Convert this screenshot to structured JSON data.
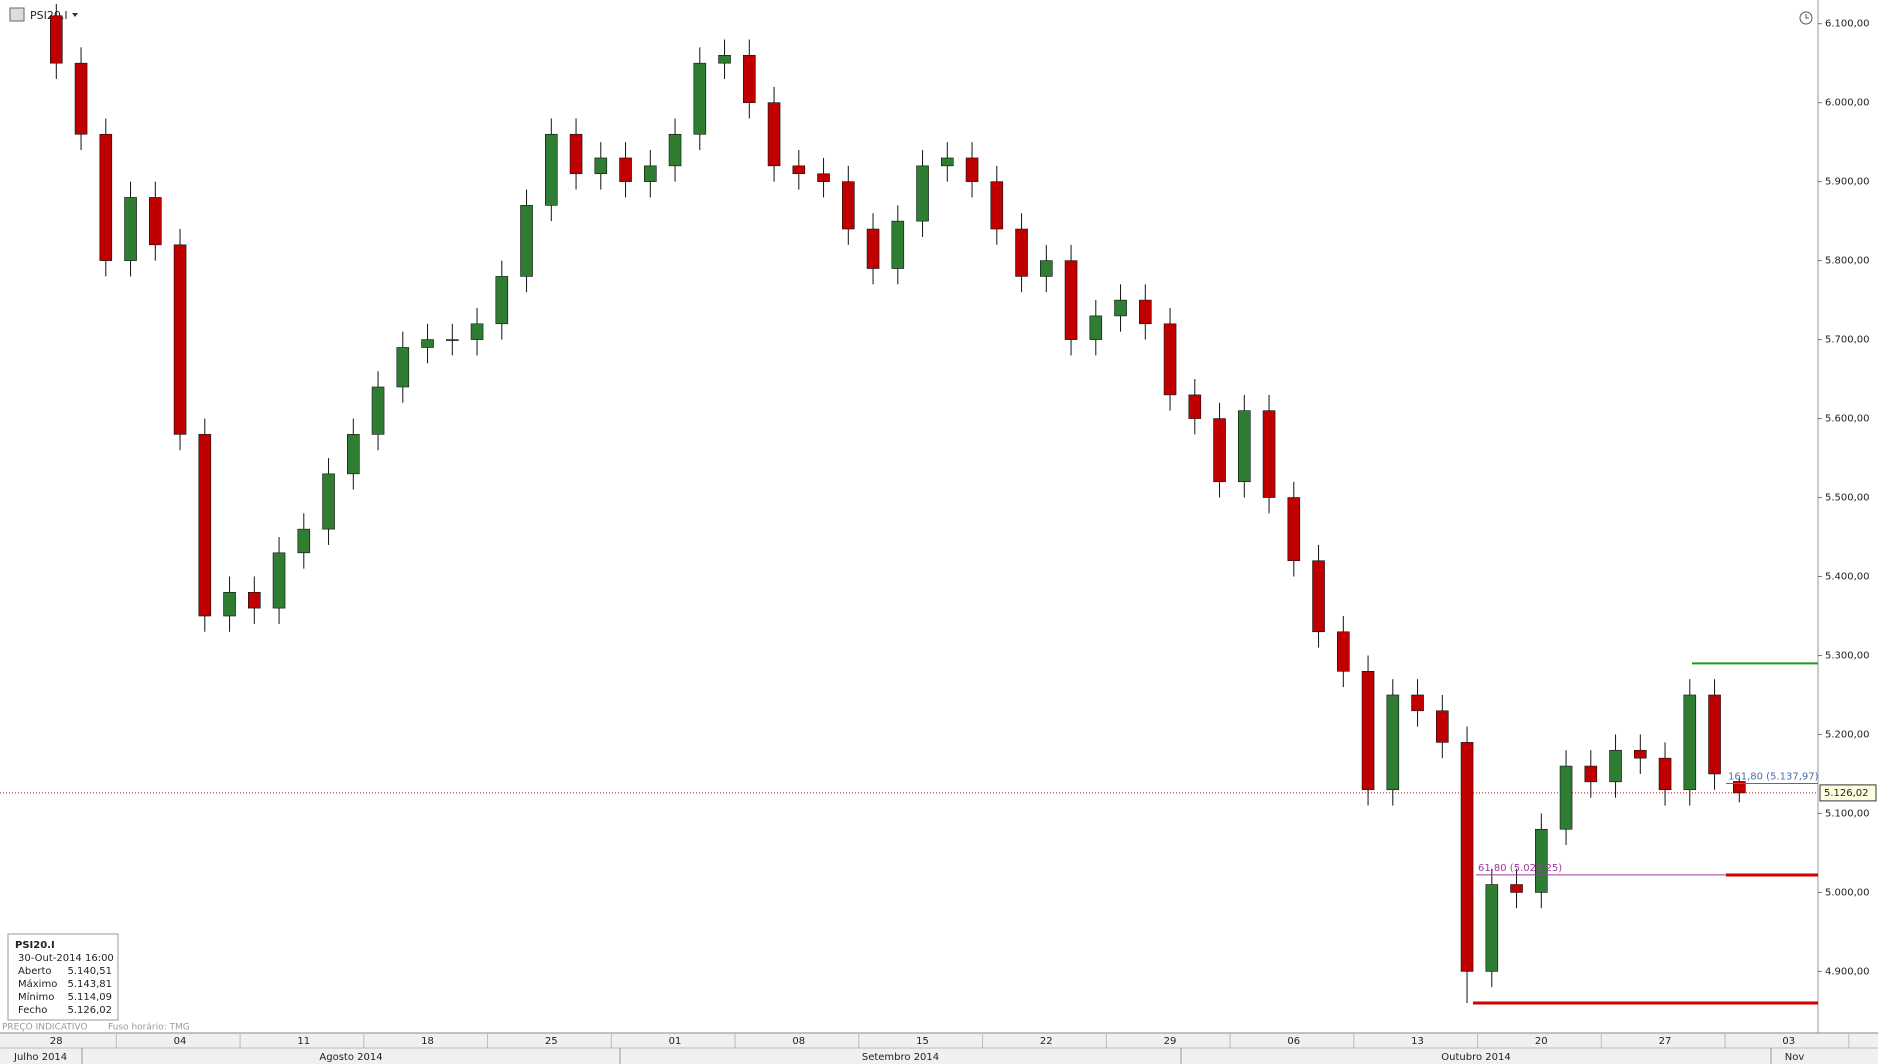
{
  "chart_data": {
    "type": "candlestick",
    "title": "PSI20.I",
    "up_color": "#2e7d32",
    "down_color": "#c00000",
    "categories": [
      "28",
      null,
      null,
      null,
      null,
      "04",
      null,
      null,
      null,
      null,
      "11",
      null,
      null,
      null,
      null,
      "18",
      null,
      null,
      null,
      null,
      "25",
      null,
      null,
      null,
      null,
      "01",
      null,
      null,
      null,
      null,
      "08",
      null,
      null,
      null,
      null,
      "15",
      null,
      null,
      null,
      null,
      "22",
      null,
      null,
      null,
      null,
      "29",
      null,
      null,
      null,
      null,
      "06",
      null,
      null,
      null,
      null,
      "13",
      null,
      null,
      null,
      null,
      "20",
      null,
      null,
      null,
      null,
      "27",
      null,
      null,
      null,
      null,
      "03"
    ],
    "months": [
      "Julho 2014",
      "Agosto 2014",
      "Setembro 2014",
      "Outubro 2014",
      "Nov"
    ],
    "open": [
      6110,
      6050,
      5960,
      5800,
      5880,
      5820,
      5580,
      5350,
      5380,
      5360,
      5430,
      5460,
      5530,
      5580,
      5640,
      5690,
      5700,
      5700,
      5720,
      5780,
      5870,
      5960,
      5910,
      5930,
      5900,
      5920,
      5960,
      6050,
      6060,
      6000,
      5920,
      5910,
      5900,
      5840,
      5790,
      5850,
      5920,
      5930,
      5900,
      5840,
      5780,
      5800,
      5700,
      5730,
      5750,
      5720,
      5630,
      5600,
      5520,
      5610,
      5500,
      5420,
      5330,
      5280,
      5130,
      5250,
      5230,
      5190,
      4900,
      5010,
      5000,
      5080,
      5160,
      5140,
      5180,
      5170,
      5130,
      5250,
      5140.51,
      null,
      null
    ],
    "high": [
      6125,
      6070,
      5980,
      5900,
      5900,
      5840,
      5600,
      5400,
      5400,
      5450,
      5480,
      5550,
      5600,
      5660,
      5710,
      5720,
      5720,
      5740,
      5800,
      5890,
      5980,
      5980,
      5950,
      5950,
      5940,
      5980,
      6070,
      6080,
      6080,
      6020,
      5940,
      5930,
      5920,
      5860,
      5870,
      5940,
      5950,
      5950,
      5920,
      5860,
      5820,
      5820,
      5750,
      5770,
      5770,
      5740,
      5650,
      5620,
      5630,
      5630,
      5520,
      5440,
      5350,
      5300,
      5270,
      5270,
      5250,
      5210,
      5030,
      5030,
      5100,
      5180,
      5180,
      5200,
      5200,
      5190,
      5270,
      5270,
      5143.81,
      null,
      null
    ],
    "low": [
      6030,
      5940,
      5780,
      5780,
      5800,
      5560,
      5330,
      5330,
      5340,
      5340,
      5410,
      5440,
      5510,
      5560,
      5620,
      5670,
      5680,
      5680,
      5700,
      5760,
      5850,
      5890,
      5890,
      5880,
      5880,
      5900,
      5940,
      6030,
      5980,
      5900,
      5890,
      5880,
      5820,
      5770,
      5770,
      5830,
      5900,
      5880,
      5820,
      5760,
      5760,
      5680,
      5680,
      5710,
      5700,
      5610,
      5580,
      5500,
      5500,
      5480,
      5400,
      5310,
      5260,
      5110,
      5110,
      5210,
      5170,
      4860,
      4880,
      4980,
      4980,
      5060,
      5120,
      5120,
      5150,
      5110,
      5110,
      5130,
      5114.09,
      null,
      null
    ],
    "close": [
      6050,
      5960,
      5800,
      5880,
      5820,
      5580,
      5350,
      5380,
      5360,
      5430,
      5460,
      5530,
      5580,
      5640,
      5690,
      5700,
      5700,
      5720,
      5780,
      5870,
      5960,
      5910,
      5930,
      5900,
      5920,
      5960,
      6050,
      6060,
      6000,
      5920,
      5910,
      5900,
      5840,
      5790,
      5850,
      5920,
      5930,
      5900,
      5840,
      5780,
      5800,
      5700,
      5730,
      5750,
      5720,
      5630,
      5600,
      5520,
      5610,
      5500,
      5420,
      5330,
      5280,
      5130,
      5250,
      5230,
      5190,
      4900,
      5010,
      5000,
      5080,
      5160,
      5140,
      5180,
      5170,
      5130,
      5250,
      5150,
      5126.02,
      null,
      null
    ],
    "ylim": [
      4822,
      6130
    ],
    "yticks": [
      {
        "value": 4900,
        "label": "4.900,00"
      },
      {
        "value": 5000,
        "label": "5.000,00"
      },
      {
        "value": 5100,
        "label": "5.100,00"
      },
      {
        "value": 5200,
        "label": "5.200,00"
      },
      {
        "value": 5300,
        "label": "5.300,00"
      },
      {
        "value": 5400,
        "label": "5.400,00"
      },
      {
        "value": 5500,
        "label": "5.500,00"
      },
      {
        "value": 5600,
        "label": "5.600,00"
      },
      {
        "value": 5700,
        "label": "5.700,00"
      },
      {
        "value": 5800,
        "label": "5.800,00"
      },
      {
        "value": 5900,
        "label": "5.900,00"
      },
      {
        "value": 6000,
        "label": "6.000,00"
      },
      {
        "value": 6100,
        "label": "6.100,00"
      }
    ],
    "last_price": {
      "value": 5126.02,
      "label": "5.126,02",
      "color": "#c00000"
    },
    "levels": [
      {
        "value": 5290,
        "color": "#1a9a1a"
      },
      {
        "value": 5022.25,
        "color": "#9b3c9b",
        "label": "61,80 (5.022,25)"
      },
      {
        "value": 5022,
        "color": "#d00000"
      },
      {
        "value": 4860,
        "color": "#d00000"
      },
      {
        "value": 5137.97,
        "color": "#4a6fa5",
        "label": "161,80 (5.137,97)"
      }
    ],
    "info": {
      "symbol": "PSI20.I",
      "datetime": "30-Out-2014 16:00",
      "rows": [
        [
          "Aberto",
          "5.140,51"
        ],
        [
          "Máximo",
          "5.143,81"
        ],
        [
          "Mínimo",
          "5.114,09"
        ],
        [
          "Fecho",
          "5.126,02"
        ]
      ]
    },
    "footer": [
      "PREÇO INDICATIVO",
      "Fuso horário: TMG"
    ]
  }
}
